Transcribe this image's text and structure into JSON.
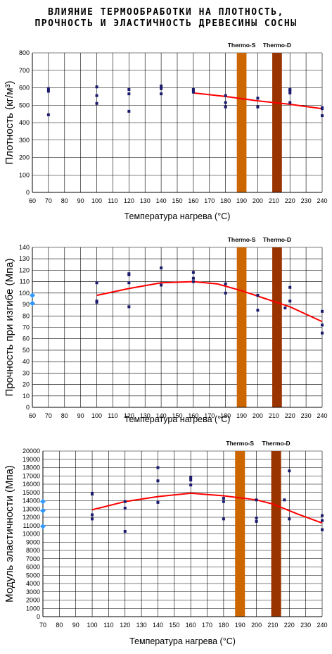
{
  "title": {
    "line1": "ВЛИЯНИЕ ТЕРМООБРАБОТКИ НА ПЛОТНОСТЬ,",
    "line2": "ПРОЧНОСТЬ И ЭЛАСТИЧНОСТЬ ДРЕВЕСИНЫ СОСНЫ"
  },
  "colors": {
    "points": "#1a1a6e",
    "trend": "#ff0000",
    "thermo_s": "#cc6600",
    "thermo_d": "#993300",
    "reference": "#3399ff",
    "grid": "#000000"
  },
  "chart_data": [
    {
      "type": "scatter",
      "title": "",
      "xlabel": "Температура нагрева (°C)",
      "ylabel": "Плотность (кг/м³)",
      "xlim": [
        60,
        240
      ],
      "ylim": [
        0,
        800
      ],
      "xticks": [
        60,
        70,
        80,
        90,
        100,
        110,
        120,
        130,
        140,
        150,
        160,
        170,
        180,
        190,
        200,
        210,
        220,
        230,
        240
      ],
      "yticks": [
        0,
        100,
        200,
        300,
        400,
        500,
        600,
        700,
        800
      ],
      "grid": true,
      "bands": [
        {
          "label": "Thermo-S",
          "x": [
            187,
            193
          ],
          "color": "#cc6600"
        },
        {
          "label": "Thermo-D",
          "x": [
            209,
            215
          ],
          "color": "#993300"
        }
      ],
      "points": [
        [
          70,
          445
        ],
        [
          70,
          580
        ],
        [
          70,
          595
        ],
        [
          100,
          510
        ],
        [
          100,
          555
        ],
        [
          100,
          605
        ],
        [
          120,
          465
        ],
        [
          120,
          565
        ],
        [
          120,
          590
        ],
        [
          140,
          565
        ],
        [
          140,
          595
        ],
        [
          140,
          610
        ],
        [
          160,
          575
        ],
        [
          160,
          590
        ],
        [
          180,
          490
        ],
        [
          180,
          515
        ],
        [
          180,
          555
        ],
        [
          200,
          490
        ],
        [
          200,
          540
        ],
        [
          220,
          515
        ],
        [
          220,
          570
        ],
        [
          220,
          585
        ],
        [
          220,
          590
        ],
        [
          240,
          440
        ],
        [
          240,
          480
        ],
        [
          240,
          485
        ]
      ],
      "reference_points": [],
      "trend": [
        [
          160,
          570
        ],
        [
          180,
          550
        ],
        [
          200,
          525
        ],
        [
          220,
          505
        ],
        [
          240,
          480
        ]
      ]
    },
    {
      "type": "scatter",
      "title": "",
      "xlabel": "Температура нагрева (°C)",
      "ylabel": "Прочность при изгибе (Мпа)",
      "xlim": [
        60,
        240
      ],
      "ylim": [
        0,
        140
      ],
      "xticks": [
        60,
        70,
        80,
        90,
        100,
        110,
        120,
        130,
        140,
        150,
        160,
        170,
        180,
        190,
        200,
        210,
        220,
        230,
        240
      ],
      "yticks": [
        0,
        10,
        20,
        30,
        40,
        50,
        60,
        70,
        80,
        90,
        100,
        110,
        120,
        130,
        140
      ],
      "grid": true,
      "bands": [
        {
          "label": "Thermo-S",
          "x": [
            187,
            193
          ],
          "color": "#cc6600"
        },
        {
          "label": "Thermo-D",
          "x": [
            209,
            215
          ],
          "color": "#993300"
        }
      ],
      "points": [
        [
          100,
          92
        ],
        [
          100,
          93
        ],
        [
          100,
          109
        ],
        [
          120,
          88
        ],
        [
          120,
          109
        ],
        [
          120,
          116
        ],
        [
          120,
          117
        ],
        [
          140,
          107
        ],
        [
          140,
          122
        ],
        [
          160,
          110
        ],
        [
          160,
          113
        ],
        [
          160,
          118
        ],
        [
          180,
          100
        ],
        [
          180,
          108
        ],
        [
          200,
          85
        ],
        [
          200,
          98
        ],
        [
          217,
          87
        ],
        [
          220,
          93
        ],
        [
          220,
          105
        ],
        [
          240,
          65
        ],
        [
          240,
          72
        ],
        [
          240,
          84
        ]
      ],
      "reference_points": [
        [
          60,
          91
        ],
        [
          60,
          98
        ]
      ],
      "trend": [
        [
          100,
          98
        ],
        [
          120,
          104
        ],
        [
          140,
          109
        ],
        [
          160,
          110
        ],
        [
          175,
          108
        ],
        [
          190,
          102
        ],
        [
          205,
          95
        ],
        [
          220,
          88
        ],
        [
          240,
          75
        ]
      ]
    },
    {
      "type": "scatter",
      "title": "",
      "xlabel": "Температура нагрева (°C)",
      "ylabel": "Модуль эластичности (Мпа)",
      "xlim": [
        70,
        240
      ],
      "ylim": [
        0,
        20000
      ],
      "xticks": [
        70,
        80,
        90,
        100,
        110,
        120,
        130,
        140,
        150,
        160,
        170,
        180,
        190,
        200,
        210,
        220,
        230,
        240
      ],
      "yticks": [
        0,
        1000,
        2000,
        3000,
        4000,
        5000,
        6000,
        7000,
        8000,
        9000,
        10000,
        11000,
        12000,
        13000,
        14000,
        15000,
        16000,
        17000,
        18000,
        19000,
        20000
      ],
      "grid": true,
      "bands": [
        {
          "label": "Thermo-S",
          "x": [
            187,
            193
          ],
          "color": "#cc6600"
        },
        {
          "label": "Thermo-D",
          "x": [
            209,
            215
          ],
          "color": "#993300"
        }
      ],
      "points": [
        [
          100,
          11800
        ],
        [
          100,
          12300
        ],
        [
          100,
          14800
        ],
        [
          100,
          14900
        ],
        [
          120,
          10300
        ],
        [
          120,
          13100
        ],
        [
          120,
          13900
        ],
        [
          140,
          13800
        ],
        [
          140,
          16400
        ],
        [
          140,
          18000
        ],
        [
          160,
          15900
        ],
        [
          160,
          16500
        ],
        [
          160,
          16800
        ],
        [
          180,
          11800
        ],
        [
          180,
          13900
        ],
        [
          180,
          14300
        ],
        [
          200,
          11500
        ],
        [
          200,
          11900
        ],
        [
          200,
          14100
        ],
        [
          217,
          14100
        ],
        [
          220,
          11800
        ],
        [
          220,
          17600
        ],
        [
          240,
          10500
        ],
        [
          240,
          11600
        ],
        [
          240,
          12200
        ]
      ],
      "reference_points": [
        [
          70,
          10900
        ],
        [
          70,
          12800
        ],
        [
          70,
          13900
        ]
      ],
      "trend": [
        [
          100,
          12900
        ],
        [
          120,
          13900
        ],
        [
          140,
          14500
        ],
        [
          160,
          14900
        ],
        [
          180,
          14600
        ],
        [
          200,
          14100
        ],
        [
          210,
          13600
        ],
        [
          225,
          12400
        ],
        [
          240,
          11300
        ]
      ]
    }
  ]
}
